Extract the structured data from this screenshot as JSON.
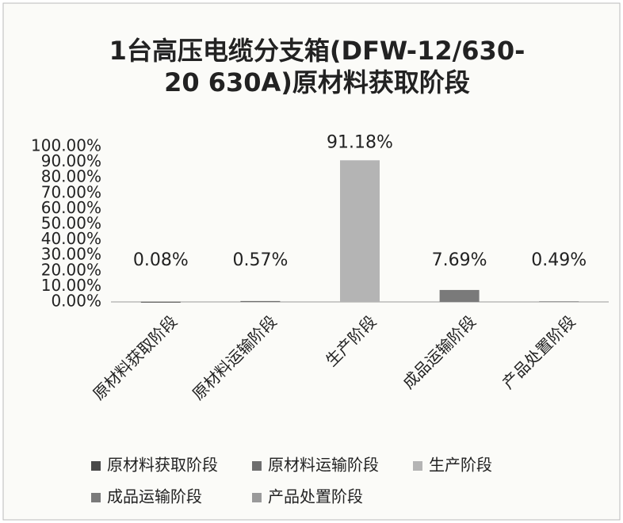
{
  "chart_data": {
    "type": "bar",
    "title": [
      "1台高压电缆分支箱(DFW-12/630-",
      "20 630A)原材料获取阶段"
    ],
    "categories": [
      "原材料获取阶段",
      "原材料运输阶段",
      "生产阶段",
      "成品运输阶段",
      "产品处置阶段"
    ],
    "values": [
      0.08,
      0.57,
      91.18,
      7.69,
      0.49
    ],
    "value_labels": [
      "0.08%",
      "0.57%",
      "91.18%",
      "7.69%",
      "0.49%"
    ],
    "colors": [
      "#4a4a4a",
      "#6e6e6e",
      "#b4b4b4",
      "#7a7a7a",
      "#9a9a9a"
    ],
    "ylim": [
      0,
      100
    ],
    "yticks": [
      {
        "value": 0,
        "label": "0.00%"
      },
      {
        "value": 10,
        "label": "10.00%"
      },
      {
        "value": 20,
        "label": "20.00%"
      },
      {
        "value": 30,
        "label": "30.00%"
      },
      {
        "value": 40,
        "label": "40.00%"
      },
      {
        "value": 50,
        "label": "50.00%"
      },
      {
        "value": 60,
        "label": "60.00%"
      },
      {
        "value": 70,
        "label": "70.00%"
      },
      {
        "value": 80,
        "label": "80.00%"
      },
      {
        "value": 90,
        "label": "90.00%"
      },
      {
        "value": 100,
        "label": "100.00%"
      }
    ],
    "legend": true
  }
}
